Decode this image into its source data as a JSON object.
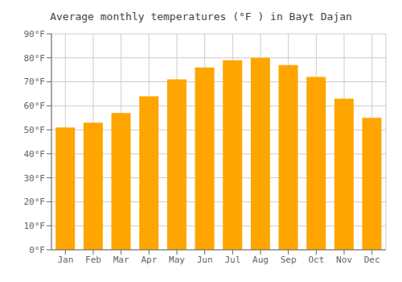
{
  "chart_data": {
    "type": "bar",
    "title": "Average monthly temperatures (°F ) in Bayt Dajan",
    "categories": [
      "Jan",
      "Feb",
      "Mar",
      "Apr",
      "May",
      "Jun",
      "Jul",
      "Aug",
      "Sep",
      "Oct",
      "Nov",
      "Dec"
    ],
    "values": [
      51,
      53,
      57,
      64,
      71,
      76,
      79,
      80,
      77,
      72,
      63,
      55
    ],
    "color": "#FFA500",
    "ylim": [
      0,
      90
    ],
    "yticks": [
      {
        "value": 0,
        "label": "0°F"
      },
      {
        "value": 10,
        "label": "10°F"
      },
      {
        "value": 20,
        "label": "20°F"
      },
      {
        "value": 30,
        "label": "30°F"
      },
      {
        "value": 40,
        "label": "40°F"
      },
      {
        "value": 50,
        "label": "50°F"
      },
      {
        "value": 60,
        "label": "60°F"
      },
      {
        "value": 70,
        "label": "70°F"
      },
      {
        "value": 80,
        "label": "80°F"
      },
      {
        "value": 90,
        "label": "90°F"
      }
    ],
    "grid": true
  }
}
